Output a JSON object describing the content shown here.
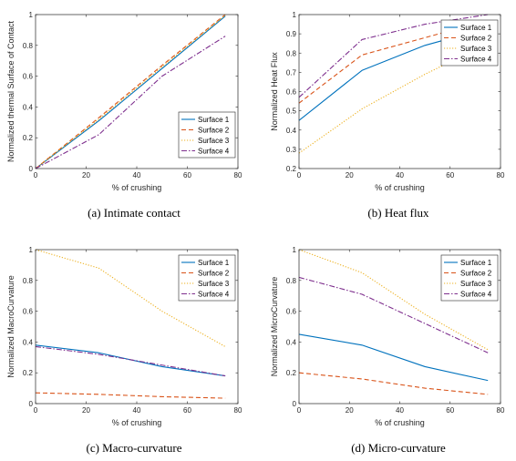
{
  "chart_data": [
    {
      "type": "line",
      "caption": "(a)  Intimate contact",
      "xlabel": "% of crushing",
      "ylabel": "Normalized thermal Surface of Contact",
      "xlim": [
        0,
        80
      ],
      "ylim": [
        0,
        1
      ],
      "xticks": [
        0,
        20,
        40,
        60,
        80
      ],
      "xtick_labels": [
        "0",
        "20",
        "40",
        "60",
        "80"
      ],
      "yticks": [
        0,
        0.2,
        0.4,
        0.6,
        0.8,
        1
      ],
      "ytick_labels": [
        "0",
        "0.2",
        "0.4",
        "0.6",
        "0.8",
        "1"
      ],
      "legend": "lower-right",
      "x": [
        0,
        25,
        50,
        75
      ],
      "series": [
        {
          "name": "Surface 1",
          "values": [
            0,
            0.31,
            0.65,
            0.99
          ]
        },
        {
          "name": "Surface 2",
          "values": [
            0,
            0.33,
            0.67,
            1.0
          ]
        },
        {
          "name": "Surface 3",
          "values": [
            0,
            0.32,
            0.66,
            0.995
          ]
        },
        {
          "name": "Surface 4",
          "values": [
            0,
            0.22,
            0.6,
            0.86
          ]
        }
      ]
    },
    {
      "type": "line",
      "caption": "(b)  Heat flux",
      "xlabel": "% of crushing",
      "ylabel": "Normalized Heat Flux",
      "xlim": [
        0,
        80
      ],
      "ylim": [
        0.2,
        1
      ],
      "xticks": [
        0,
        20,
        40,
        60,
        80
      ],
      "xtick_labels": [
        "0",
        "20",
        "40",
        "60",
        "80"
      ],
      "yticks": [
        0.2,
        0.3,
        0.4,
        0.5,
        0.6,
        0.7,
        0.8,
        0.9,
        1
      ],
      "ytick_labels": [
        "0.2",
        "0.3",
        "0.4",
        "0.5",
        "0.6",
        "0.7",
        "0.8",
        "0.9",
        "1"
      ],
      "legend": "upper-right",
      "x": [
        0,
        25,
        50,
        75
      ],
      "series": [
        {
          "name": "Surface 1",
          "values": [
            0.45,
            0.71,
            0.84,
            0.93
          ]
        },
        {
          "name": "Surface 2",
          "values": [
            0.54,
            0.79,
            0.88,
            0.97
          ]
        },
        {
          "name": "Surface 3",
          "values": [
            0.28,
            0.51,
            0.69,
            0.85
          ]
        },
        {
          "name": "Surface 4",
          "values": [
            0.57,
            0.87,
            0.95,
            1.0
          ]
        }
      ]
    },
    {
      "type": "line",
      "caption": "(c)  Macro-curvature",
      "xlabel": "% of crushing",
      "ylabel": "Normalized MacroCurvature",
      "xlim": [
        0,
        80
      ],
      "ylim": [
        0,
        1
      ],
      "xticks": [
        0,
        20,
        40,
        60,
        80
      ],
      "xtick_labels": [
        "0",
        "20",
        "40",
        "60",
        "80"
      ],
      "yticks": [
        0,
        0.2,
        0.4,
        0.6,
        0.8,
        1
      ],
      "ytick_labels": [
        "0",
        "0.2",
        "0.4",
        "0.6",
        "0.8",
        "1"
      ],
      "legend": "upper-right",
      "x": [
        0,
        25,
        50,
        75
      ],
      "series": [
        {
          "name": "Surface 1",
          "values": [
            0.38,
            0.33,
            0.24,
            0.18
          ]
        },
        {
          "name": "Surface 2",
          "values": [
            0.07,
            0.06,
            0.045,
            0.035
          ]
        },
        {
          "name": "Surface 3",
          "values": [
            1.0,
            0.88,
            0.6,
            0.37
          ]
        },
        {
          "name": "Surface 4",
          "values": [
            0.37,
            0.32,
            0.25,
            0.18
          ]
        }
      ]
    },
    {
      "type": "line",
      "caption": "(d)  Micro-curvature",
      "xlabel": "% of crushing",
      "ylabel": "Normalized MicroCurvature",
      "xlim": [
        0,
        80
      ],
      "ylim": [
        0,
        1
      ],
      "xticks": [
        0,
        20,
        40,
        60,
        80
      ],
      "xtick_labels": [
        "0",
        "20",
        "40",
        "60",
        "80"
      ],
      "yticks": [
        0,
        0.2,
        0.4,
        0.6,
        0.8,
        1
      ],
      "ytick_labels": [
        "0",
        "0.2",
        "0.4",
        "0.6",
        "0.8",
        "1"
      ],
      "legend": "upper-right",
      "x": [
        0,
        25,
        50,
        75
      ],
      "series": [
        {
          "name": "Surface 1",
          "values": [
            0.45,
            0.38,
            0.24,
            0.15
          ]
        },
        {
          "name": "Surface 2",
          "values": [
            0.2,
            0.16,
            0.1,
            0.06
          ]
        },
        {
          "name": "Surface 3",
          "values": [
            1.0,
            0.85,
            0.58,
            0.35
          ]
        },
        {
          "name": "Surface 4",
          "values": [
            0.82,
            0.71,
            0.52,
            0.33
          ]
        }
      ]
    }
  ],
  "series_styles": [
    {
      "color": "#0072BD",
      "dash": "none"
    },
    {
      "color": "#D95319",
      "dash": "5,3"
    },
    {
      "color": "#EDB120",
      "dash": "1.2,1.8"
    },
    {
      "color": "#7E2F8E",
      "dash": "6,2,1.5,2"
    }
  ]
}
